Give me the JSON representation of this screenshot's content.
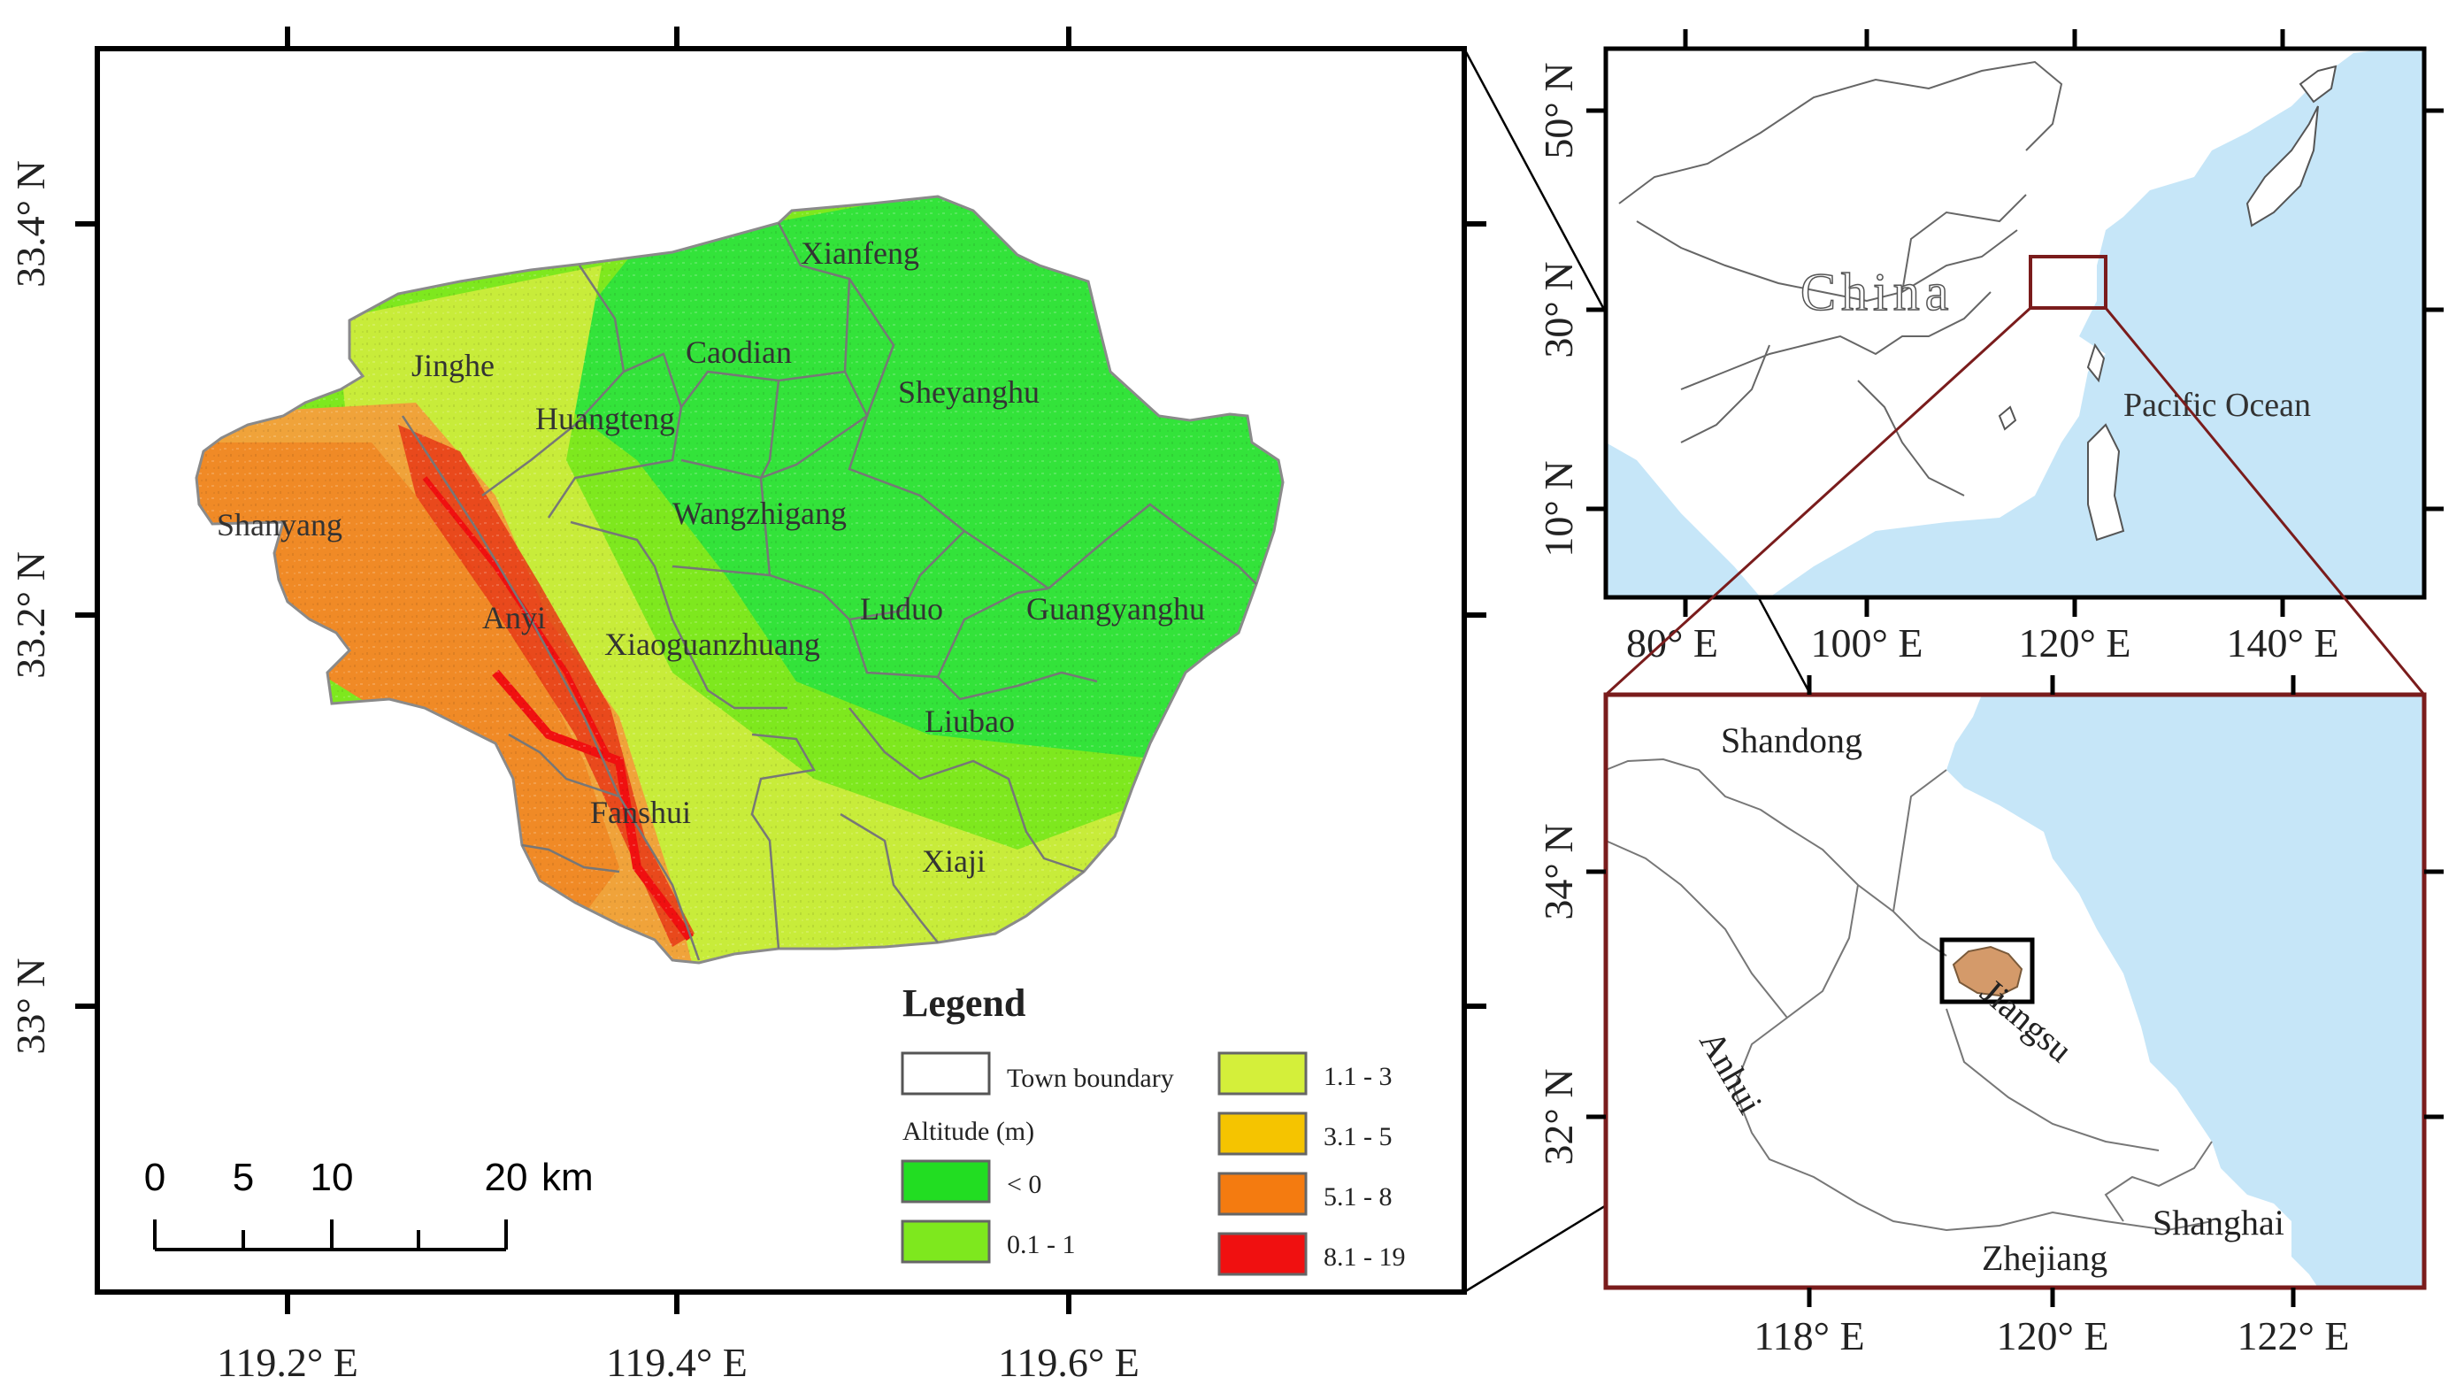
{
  "main_map": {
    "x_ticks": [
      "119.2° E",
      "119.4° E",
      "119.6° E"
    ],
    "y_ticks": [
      "33.4° N",
      "33.2° N",
      "33° N"
    ],
    "towns": [
      "Xianfeng",
      "Jinghe",
      "Caodian",
      "Sheyanghu",
      "Huangteng",
      "Shanyang",
      "Wangzhigang",
      "Anyi",
      "Luduo",
      "Guangyanghu",
      "Xiaoguanzhuang",
      "Liubao",
      "Fanshui",
      "Xiaji"
    ],
    "scale_bar": {
      "labels": [
        "0",
        "5",
        "10",
        "20"
      ],
      "unit": "km"
    },
    "legend": {
      "title": "Legend",
      "boundary_label": "Town boundary",
      "altitude_title": "Altitude (m)",
      "classes": [
        {
          "label": "< 0",
          "color": "#22dd22"
        },
        {
          "label": "0.1 - 1",
          "color": "#7ee81e"
        },
        {
          "label": "1.1 - 3",
          "color": "#d4ef3a"
        },
        {
          "label": "3.1 - 5",
          "color": "#f5c400"
        },
        {
          "label": "5.1 - 8",
          "color": "#f47b10"
        },
        {
          "label": "8.1 - 19",
          "color": "#f01010"
        }
      ]
    }
  },
  "china_map": {
    "x_ticks": [
      "80° E",
      "100° E",
      "120° E",
      "140° E"
    ],
    "y_ticks": [
      "50° N",
      "30° N",
      "10° N"
    ],
    "country_label": "China",
    "ocean_label": "Pacific Ocean",
    "ocean_color": "#c6e6f8"
  },
  "jiangsu_map": {
    "x_ticks": [
      "118° E",
      "120° E",
      "122° E"
    ],
    "y_ticks": [
      "34° N",
      "32° N"
    ],
    "labels": [
      "Shandong",
      "Anhui",
      "Jiangsu",
      "Zhejiang",
      "Shanghai"
    ],
    "study_area_color": "#d49a6a",
    "frame_color": "#7a1c1c"
  }
}
